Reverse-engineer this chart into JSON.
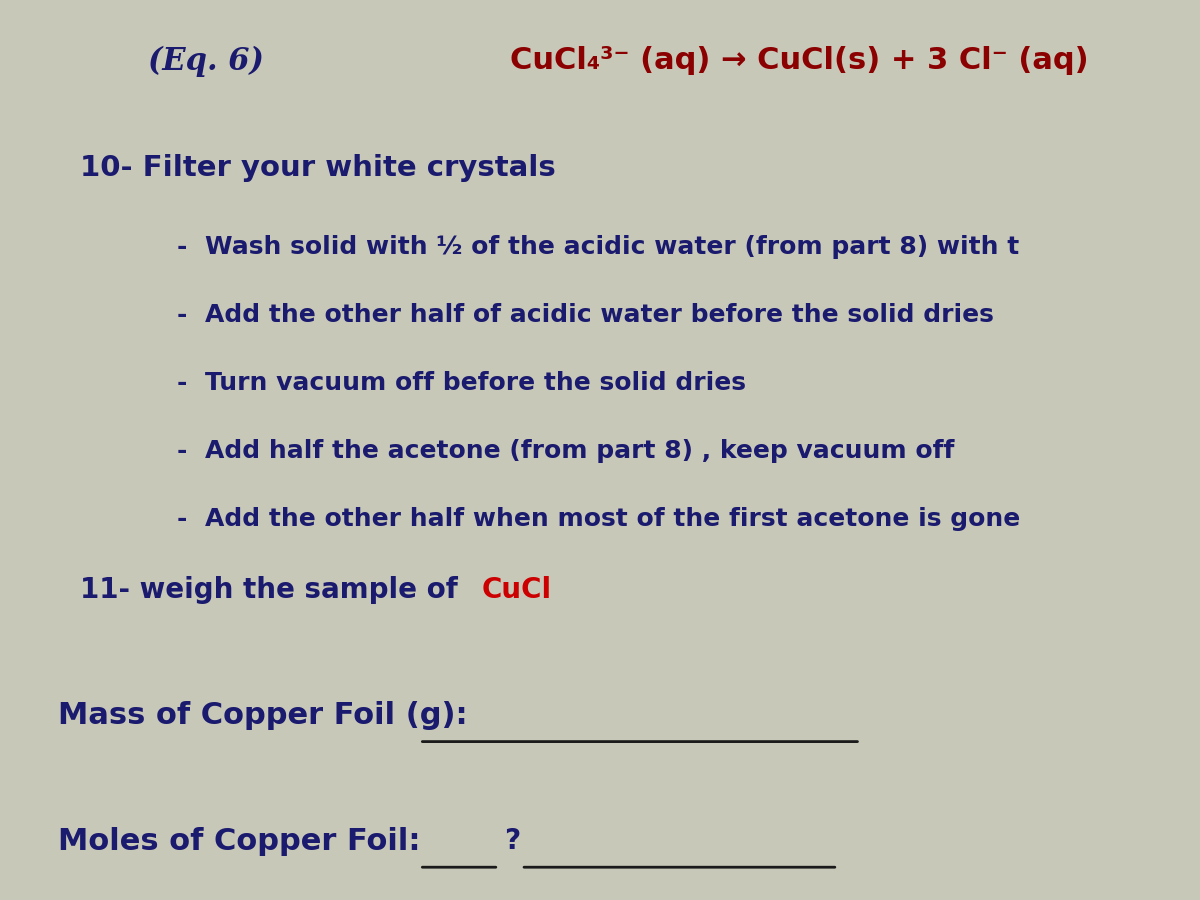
{
  "background_color": "#c8c8b8",
  "eq_label": "(Eq. 6)",
  "eq_label_color": "#1a1a6e",
  "eq_label_style": "italic",
  "equation": "CuCl₄³⁻ (aq) → CuCl(s) + 3 Cl⁻ (aq)",
  "equation_color": "#8b0000",
  "step10_header": "10- Filter your white crystals",
  "step10_header_color": "#1a1a6e",
  "bullet_points": [
    "Wash solid with ½ of the acidic water (from part 8) with t",
    "Add the other half of acidic water before the solid dries",
    "Turn vacuum off before the solid dries",
    "Add half the acetone (from part 8) , keep vacuum off",
    "Add the other half when most of the first acetone is gone"
  ],
  "bullet_color": "#1a1a6e",
  "step11_prefix": "11- weigh the sample of ",
  "step11_compound": "CuCl",
  "step11_prefix_color": "#1a1a6e",
  "step11_compound_color": "#cc0000",
  "mass_label": "Mass of Copper Foil (g):",
  "mass_label_color": "#1a1a6e",
  "moles_label": "Moles of Copper Foil:",
  "moles_label_color": "#1a1a6e",
  "line_color": "#1a1a1a",
  "font_size_eq": 22,
  "font_size_header": 21,
  "font_size_bullet": 18,
  "font_size_step11": 20,
  "font_size_labels": 22
}
